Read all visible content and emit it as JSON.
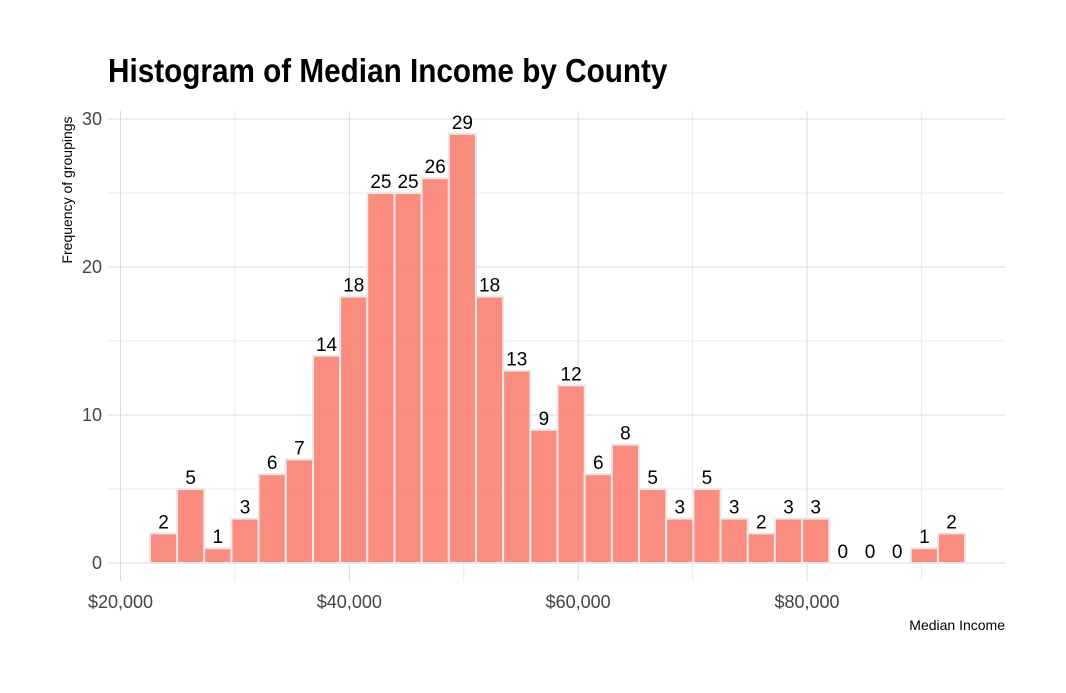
{
  "chart_data": {
    "type": "bar",
    "title": "Histogram of Median Income by County",
    "xlabel": "Median Income",
    "ylabel": "Frequency of groupings",
    "x_tick_labels": [
      "$20,000",
      "$40,000",
      "$60,000",
      "$80,000"
    ],
    "x_ticks": [
      20000,
      40000,
      60000,
      80000
    ],
    "y_ticks": [
      0,
      10,
      20,
      30
    ],
    "bin_width": 2375,
    "bin_start": 22570,
    "values": [
      2,
      5,
      1,
      3,
      6,
      7,
      14,
      18,
      25,
      25,
      26,
      29,
      18,
      13,
      9,
      12,
      6,
      8,
      5,
      3,
      5,
      3,
      2,
      3,
      3,
      0,
      0,
      0,
      1,
      2
    ],
    "xlim": [
      20000,
      96000
    ],
    "ylim": [
      0,
      30
    ],
    "grid": true,
    "bar_color": "#FA8072",
    "bar_edge_color": "#e8e8e8"
  }
}
